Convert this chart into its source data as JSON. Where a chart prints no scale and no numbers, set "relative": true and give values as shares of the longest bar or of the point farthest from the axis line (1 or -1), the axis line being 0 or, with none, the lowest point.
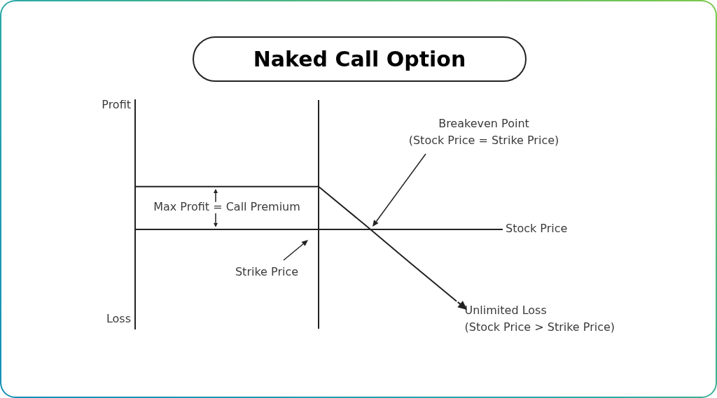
{
  "chart_data": {
    "type": "line",
    "title": "Naked Call Option",
    "xlabel": "Stock Price",
    "categories": [
      null,
      null,
      null,
      null,
      null,
      null,
      null,
      null,
      null
    ],
    "values": [
      0.6,
      0.6,
      0.6,
      0.6,
      0.6,
      0.07,
      -0.47,
      -1,
      null
    ],
    "color": "#222222",
    "relative": true,
    "marker": "none",
    "line_style": "solid",
    "annotations": [
      "Profit",
      "Loss",
      "Max Profit = Call Premium",
      "Strike Price",
      "Breakeven Point\n(Stock Price = Strike Price)",
      "Unlimited Loss\n(Stock Price > Strike Price)"
    ]
  }
}
